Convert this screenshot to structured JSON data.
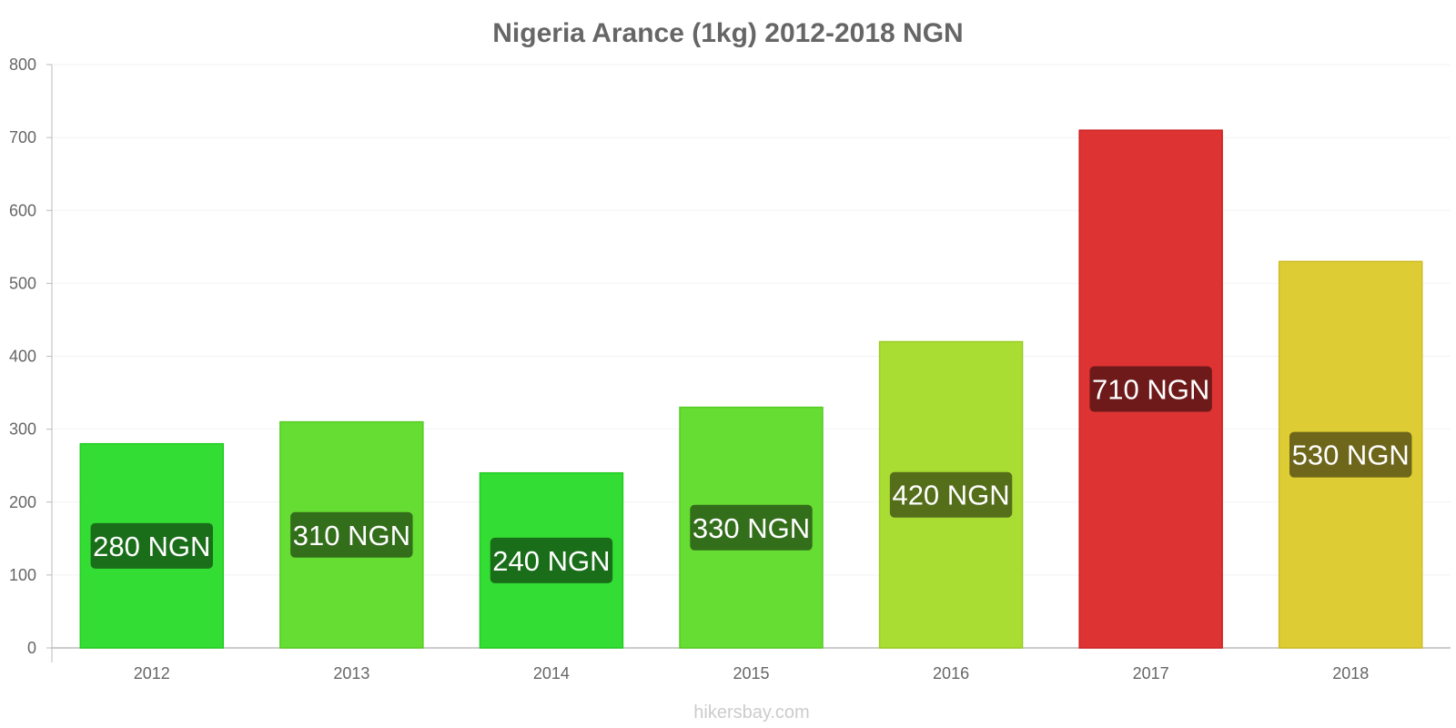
{
  "chart_data": {
    "type": "bar",
    "title": "Nigeria Arance (1kg) 2012-2018 NGN",
    "categories": [
      "2012",
      "2013",
      "2014",
      "2015",
      "2016",
      "2017",
      "2018"
    ],
    "values": [
      280,
      310,
      240,
      330,
      420,
      710,
      530
    ],
    "data_labels": [
      "280 NGN",
      "310 NGN",
      "240 NGN",
      "330 NGN",
      "420 NGN",
      "710 NGN",
      "530 NGN"
    ],
    "bar_colors": [
      "#33dd33",
      "#66dd33",
      "#33dd33",
      "#66dd33",
      "#aadd33",
      "#dd3333",
      "#ddcc33"
    ],
    "bar_border_colors": [
      "#22cc22",
      "#55cc22",
      "#22cc22",
      "#55cc22",
      "#99cc22",
      "#cc2222",
      "#ccbb22"
    ],
    "label_bg_colors": [
      "#1a6e1a",
      "#336e1a",
      "#1a6e1a",
      "#336e1a",
      "#556e1a",
      "#6e1a1a",
      "#6e661a"
    ],
    "yticks": [
      "0",
      "100",
      "200",
      "300",
      "400",
      "500",
      "600",
      "700",
      "800"
    ],
    "ylim": [
      0,
      800
    ],
    "xlabel": "",
    "ylabel": "",
    "grid": true,
    "legend": "none"
  },
  "footer": {
    "source": "hikersbay.com"
  }
}
